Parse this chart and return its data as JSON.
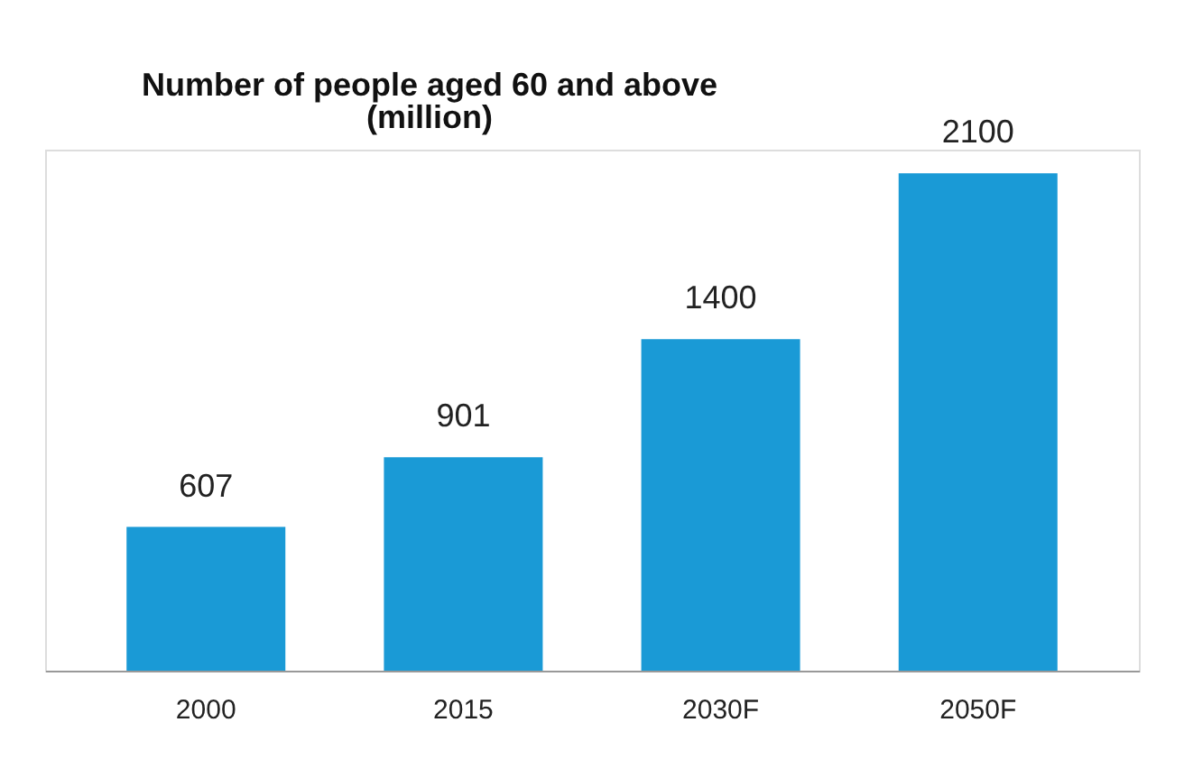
{
  "chart_data": {
    "type": "bar",
    "title": "Number of people aged 60 and above",
    "subtitle": "(million)",
    "categories": [
      "2000",
      "2015",
      "2030F",
      "2050F"
    ],
    "values": [
      607,
      901,
      1400,
      2100
    ],
    "color": "#1a9ad6",
    "data_labels": true
  }
}
